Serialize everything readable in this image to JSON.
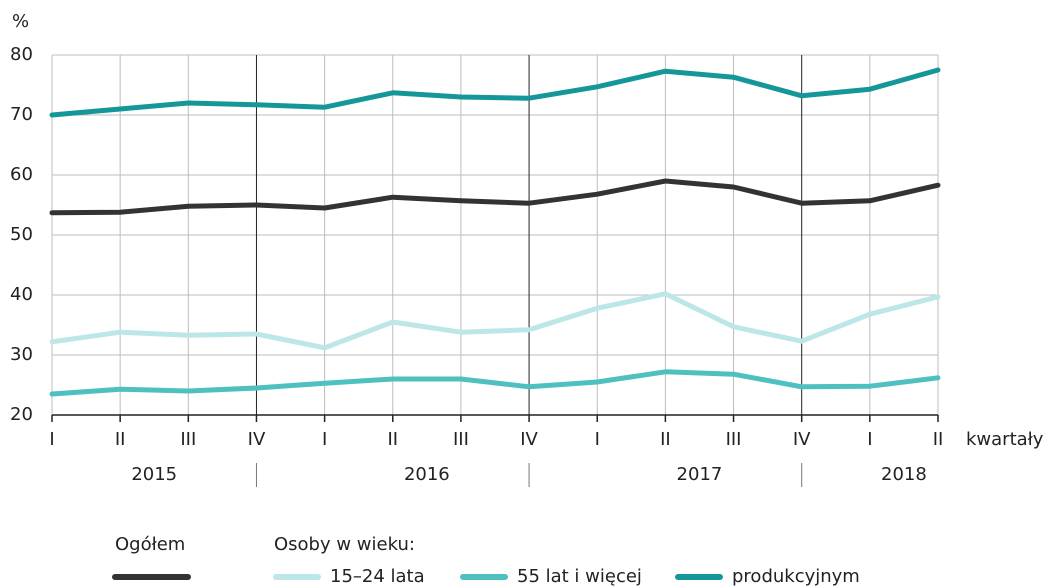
{
  "chart_data": {
    "type": "line",
    "unit_label": "%",
    "x_label": "kwartały",
    "categories": [
      "I",
      "II",
      "III",
      "IV",
      "I",
      "II",
      "III",
      "IV",
      "I",
      "II",
      "III",
      "IV",
      "I",
      "II"
    ],
    "years": [
      "2015",
      "2016",
      "2017",
      "2018"
    ],
    "legend_group_title": "Osoby w wieku:",
    "ylim": [
      20,
      80
    ],
    "yticks": [
      20,
      30,
      40,
      50,
      60,
      70,
      80
    ],
    "grid": true,
    "series": [
      {
        "name": "Ogółem",
        "color": "#333333",
        "values": [
          53.7,
          53.8,
          54.8,
          55.0,
          54.5,
          56.3,
          55.7,
          55.3,
          56.8,
          59.0,
          58.0,
          55.3,
          55.7,
          58.3
        ]
      },
      {
        "name": "15–24 lata",
        "color": "#bde6e6",
        "values": [
          32.2,
          33.8,
          33.3,
          33.5,
          31.2,
          35.5,
          33.8,
          34.2,
          37.8,
          40.2,
          34.7,
          32.3,
          36.8,
          39.7
        ]
      },
      {
        "name": "55 lat i więcej",
        "color": "#4fc0c0",
        "values": [
          23.5,
          24.3,
          24.0,
          24.5,
          25.3,
          26.0,
          26.0,
          24.7,
          25.5,
          27.2,
          26.8,
          24.7,
          24.8,
          26.2
        ]
      },
      {
        "name": "produkcyjnym",
        "color": "#15979a",
        "values": [
          70.0,
          71.0,
          72.0,
          71.7,
          71.3,
          73.7,
          73.0,
          72.8,
          74.7,
          77.3,
          76.3,
          73.2,
          74.3,
          77.5
        ]
      }
    ]
  }
}
